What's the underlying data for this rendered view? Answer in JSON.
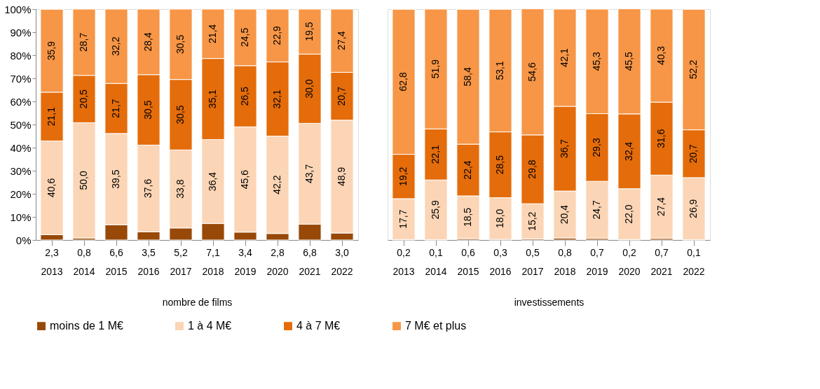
{
  "chart_data": [
    {
      "type": "bar",
      "stacked": true,
      "xlabel": "nombre de films",
      "categories": [
        "2013",
        "2014",
        "2015",
        "2016",
        "2017",
        "2018",
        "2019",
        "2020",
        "2021",
        "2022"
      ],
      "ylim": [
        0,
        100
      ],
      "yticks": [
        {
          "value": 0,
          "label": "0%"
        },
        {
          "value": 10,
          "label": "10%"
        },
        {
          "value": 20,
          "label": "20%"
        },
        {
          "value": 30,
          "label": "30%"
        },
        {
          "value": 40,
          "label": "40%"
        },
        {
          "value": 50,
          "label": "50%"
        },
        {
          "value": 60,
          "label": "60%"
        },
        {
          "value": 70,
          "label": "70%"
        },
        {
          "value": 80,
          "label": "80%"
        },
        {
          "value": 90,
          "label": "90%"
        },
        {
          "value": 100,
          "label": "100%"
        }
      ],
      "legend": "bottom",
      "series": [
        {
          "name": "moins de 1 M€",
          "color": "#984807",
          "values": [
            2.3,
            0.8,
            6.6,
            3.5,
            5.2,
            7.1,
            3.4,
            2.8,
            6.8,
            3.0
          ],
          "value_labels": [
            "2,3",
            "0,8",
            "6,6",
            "3,5",
            "5,2",
            "7,1",
            "3,4",
            "2,8",
            "6,8",
            "3,0"
          ]
        },
        {
          "name": "1 à 4 M€",
          "color": "#fbd5b5",
          "values": [
            40.6,
            50.0,
            39.5,
            37.6,
            33.8,
            36.4,
            45.6,
            42.2,
            43.7,
            48.9
          ],
          "value_labels": [
            "40,6",
            "50,0",
            "39,5",
            "37,6",
            "33,8",
            "36,4",
            "45,6",
            "42,2",
            "43,7",
            "48,9"
          ]
        },
        {
          "name": "4 à 7 M€",
          "color": "#e46c0a",
          "values": [
            21.1,
            20.5,
            21.7,
            30.5,
            30.5,
            35.1,
            26.5,
            32.1,
            30.0,
            20.7
          ],
          "value_labels": [
            "21,1",
            "20,5",
            "21,7",
            "30,5",
            "30,5",
            "35,1",
            "26,5",
            "32,1",
            "30,0",
            "20,7"
          ]
        },
        {
          "name": "7 M€ et plus",
          "color": "#f79646",
          "values": [
            35.9,
            28.7,
            32.2,
            28.4,
            30.5,
            21.4,
            24.5,
            22.9,
            19.5,
            27.4
          ],
          "value_labels": [
            "35,9",
            "28,7",
            "32,2",
            "28,4",
            "30,5",
            "21,4",
            "24,5",
            "22,9",
            "19,5",
            "27,4"
          ]
        }
      ]
    },
    {
      "type": "bar",
      "stacked": true,
      "xlabel": "investissements",
      "categories": [
        "2013",
        "2014",
        "2015",
        "2016",
        "2017",
        "2018",
        "2019",
        "2020",
        "2021",
        "2022"
      ],
      "ylim": [
        0,
        100
      ],
      "tick_labels": "x",
      "legend": "bottom",
      "series": [
        {
          "name": "moins de 1 M€",
          "color": "#984807",
          "values": [
            0.2,
            0.1,
            0.6,
            0.3,
            0.5,
            0.8,
            0.7,
            0.2,
            0.7,
            0.1
          ],
          "value_labels": [
            "0,2",
            "0,1",
            "0,6",
            "0,3",
            "0,5",
            "0,8",
            "0,7",
            "0,2",
            "0,7",
            "0,1"
          ]
        },
        {
          "name": "1 à 4 M€",
          "color": "#fbd5b5",
          "values": [
            17.7,
            25.9,
            18.5,
            18.0,
            15.2,
            20.4,
            24.7,
            22.0,
            27.4,
            26.9
          ],
          "value_labels": [
            "17,7",
            "25,9",
            "18,5",
            "18,0",
            "15,2",
            "20,4",
            "24,7",
            "22,0",
            "27,4",
            "26,9"
          ]
        },
        {
          "name": "4 à 7 M€",
          "color": "#e46c0a",
          "values": [
            19.2,
            22.1,
            22.4,
            28.5,
            29.8,
            36.7,
            29.3,
            32.4,
            31.6,
            20.7
          ],
          "value_labels": [
            "19,2",
            "22,1",
            "22,4",
            "28,5",
            "29,8",
            "36,7",
            "29,3",
            "32,4",
            "31,6",
            "20,7"
          ]
        },
        {
          "name": "7 M€ et plus",
          "color": "#f79646",
          "values": [
            62.8,
            51.9,
            58.4,
            53.1,
            54.6,
            42.1,
            45.3,
            45.5,
            40.3,
            52.2
          ],
          "value_labels": [
            "62,8",
            "51,9",
            "58,4",
            "53,1",
            "54,6",
            "42,1",
            "45,3",
            "45,5",
            "40,3",
            "52,2"
          ]
        }
      ]
    }
  ]
}
